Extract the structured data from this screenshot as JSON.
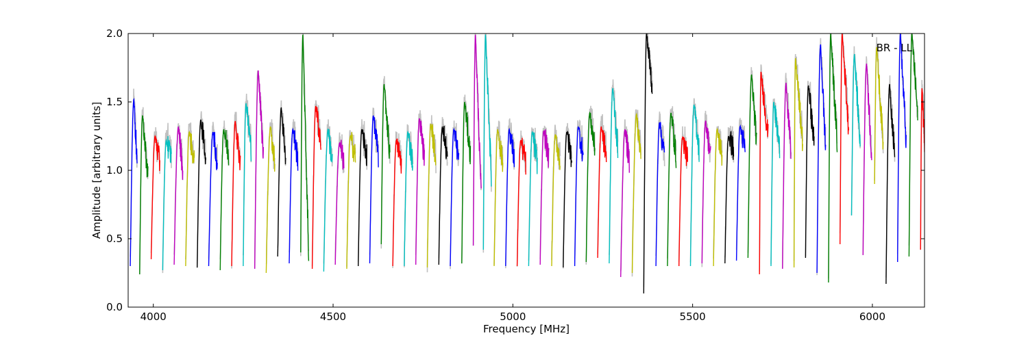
{
  "chart_data": {
    "type": "line",
    "xlabel": "Frequency [MHz]",
    "ylabel": "Amplitude [arbitrary units]",
    "annotation": "BR - LL",
    "xlim": [
      3930,
      6145
    ],
    "ylim": [
      0.0,
      2.0
    ],
    "x_ticks": [
      4000,
      4500,
      5000,
      5500,
      6000
    ],
    "y_ticks": [
      0.0,
      0.5,
      1.0,
      1.5,
      2.0
    ],
    "x_tick_labels": [
      "4000",
      "4500",
      "5000",
      "5500",
      "6000"
    ],
    "y_tick_labels": [
      "0.0",
      "0.5",
      "1.0",
      "1.5",
      "2.0"
    ],
    "grid": false,
    "legend": "none",
    "channel_colors": [
      "#0000ff",
      "#008000",
      "#ff0000",
      "#00bfbf",
      "#bf00bf",
      "#bfbf00",
      "#000000"
    ],
    "raw_color": "#c0c0c0",
    "band_start": 3930,
    "band_width": 32,
    "channels": [
      {
        "color": "#0000ff",
        "peaks": [
          [
            3936,
            0.3
          ],
          [
            3946,
            1.52
          ],
          [
            3955,
            1.05
          ]
        ]
      },
      {
        "color": "#008000",
        "peaks": [
          [
            3962,
            0.24
          ],
          [
            3970,
            1.4
          ],
          [
            3985,
            0.95
          ]
        ]
      },
      {
        "color": "#ff0000",
        "peaks": [
          [
            3994,
            0.35
          ],
          [
            4005,
            1.25
          ],
          [
            4018,
            1.05
          ]
        ]
      },
      {
        "color": "#00bfbf",
        "peaks": [
          [
            4026,
            0.27
          ],
          [
            4036,
            1.22
          ],
          [
            4050,
            1.1
          ]
        ]
      },
      {
        "color": "#bf00bf",
        "peaks": [
          [
            4058,
            0.31
          ],
          [
            4070,
            1.32
          ],
          [
            4082,
            1.0
          ]
        ]
      },
      {
        "color": "#bfbf00",
        "peaks": [
          [
            4090,
            0.3
          ],
          [
            4100,
            1.28
          ],
          [
            4114,
            1.05
          ]
        ]
      },
      {
        "color": "#000000",
        "peaks": [
          [
            4122,
            0.29
          ],
          [
            4132,
            1.37
          ],
          [
            4146,
            1.1
          ]
        ]
      },
      {
        "color": "#0000ff",
        "peaks": [
          [
            4154,
            0.3
          ],
          [
            4166,
            1.28
          ],
          [
            4178,
            1.05
          ]
        ]
      },
      {
        "color": "#008000",
        "peaks": [
          [
            4186,
            0.27
          ],
          [
            4196,
            1.3
          ],
          [
            4210,
            1.1
          ]
        ]
      },
      {
        "color": "#ff0000",
        "peaks": [
          [
            4218,
            0.3
          ],
          [
            4228,
            1.36
          ],
          [
            4242,
            1.05
          ]
        ]
      },
      {
        "color": "#00bfbf",
        "peaks": [
          [
            4250,
            0.3
          ],
          [
            4258,
            1.49
          ],
          [
            4272,
            1.15
          ]
        ]
      },
      {
        "color": "#bf00bf",
        "peaks": [
          [
            4282,
            0.28
          ],
          [
            4292,
            1.73
          ],
          [
            4306,
            1.1
          ]
        ]
      },
      {
        "color": "#bfbf00",
        "peaks": [
          [
            4314,
            0.25
          ],
          [
            4326,
            1.32
          ],
          [
            4338,
            1.05
          ]
        ]
      },
      {
        "color": "#000000",
        "peaks": [
          [
            4346,
            0.37
          ],
          [
            4356,
            1.46
          ],
          [
            4368,
            1.1
          ]
        ]
      },
      {
        "color": "#0000ff",
        "peaks": [
          [
            4378,
            0.32
          ],
          [
            4388,
            1.3
          ],
          [
            4402,
            1.08
          ]
        ]
      },
      {
        "color": "#008000",
        "peaks": [
          [
            4410,
            0.4
          ],
          [
            4416,
            2.0
          ],
          [
            4432,
            0.38
          ]
        ]
      },
      {
        "color": "#ff0000",
        "peaks": [
          [
            4442,
            0.28
          ],
          [
            4452,
            1.47
          ],
          [
            4466,
            1.2
          ]
        ]
      },
      {
        "color": "#00bfbf",
        "peaks": [
          [
            4474,
            0.26
          ],
          [
            4486,
            1.3
          ],
          [
            4498,
            1.05
          ]
        ]
      },
      {
        "color": "#bf00bf",
        "peaks": [
          [
            4506,
            0.31
          ],
          [
            4518,
            1.2
          ],
          [
            4530,
            1.05
          ]
        ]
      },
      {
        "color": "#bfbf00",
        "peaks": [
          [
            4538,
            0.28
          ],
          [
            4548,
            1.25
          ],
          [
            4562,
            1.1
          ]
        ]
      },
      {
        "color": "#000000",
        "peaks": [
          [
            4570,
            0.3
          ],
          [
            4580,
            1.3
          ],
          [
            4594,
            1.1
          ]
        ]
      },
      {
        "color": "#0000ff",
        "peaks": [
          [
            4602,
            0.32
          ],
          [
            4612,
            1.4
          ],
          [
            4626,
            1.1
          ]
        ]
      },
      {
        "color": "#008000",
        "peaks": [
          [
            4634,
            0.46
          ],
          [
            4642,
            1.63
          ],
          [
            4658,
            1.1
          ]
        ]
      },
      {
        "color": "#ff0000",
        "peaks": [
          [
            4666,
            0.3
          ],
          [
            4676,
            1.22
          ],
          [
            4690,
            1.05
          ]
        ]
      },
      {
        "color": "#00bfbf",
        "peaks": [
          [
            4698,
            0.3
          ],
          [
            4708,
            1.28
          ],
          [
            4722,
            1.05
          ]
        ]
      },
      {
        "color": "#bf00bf",
        "peaks": [
          [
            4730,
            0.31
          ],
          [
            4740,
            1.38
          ],
          [
            4754,
            1.1
          ]
        ]
      },
      {
        "color": "#bfbf00",
        "peaks": [
          [
            4762,
            0.29
          ],
          [
            4772,
            1.34
          ],
          [
            4786,
            1.08
          ]
        ]
      },
      {
        "color": "#000000",
        "peaks": [
          [
            4794,
            0.31
          ],
          [
            4804,
            1.32
          ],
          [
            4818,
            1.1
          ]
        ]
      },
      {
        "color": "#0000ff",
        "peaks": [
          [
            4826,
            0.3
          ],
          [
            4836,
            1.3
          ],
          [
            4850,
            1.08
          ]
        ]
      },
      {
        "color": "#008000",
        "peaks": [
          [
            4858,
            0.32
          ],
          [
            4866,
            1.5
          ],
          [
            4882,
            1.1
          ]
        ]
      },
      {
        "color": "#bf00bf",
        "peaks": [
          [
            4890,
            0.45
          ],
          [
            4896,
            2.0
          ],
          [
            4912,
            0.8
          ]
        ]
      },
      {
        "color": "#00bfbf",
        "peaks": [
          [
            4918,
            0.42
          ],
          [
            4924,
            2.0
          ],
          [
            4940,
            0.95
          ]
        ]
      },
      {
        "color": "#bfbf00",
        "peaks": [
          [
            4948,
            0.3
          ],
          [
            4958,
            1.3
          ],
          [
            4972,
            1.05
          ]
        ]
      },
      {
        "color": "#0000ff",
        "peaks": [
          [
            4980,
            0.3
          ],
          [
            4990,
            1.3
          ],
          [
            5004,
            1.08
          ]
        ]
      },
      {
        "color": "#ff0000",
        "peaks": [
          [
            5012,
            0.3
          ],
          [
            5022,
            1.22
          ],
          [
            5036,
            1.05
          ]
        ]
      },
      {
        "color": "#00bfbf",
        "peaks": [
          [
            5044,
            0.3
          ],
          [
            5054,
            1.28
          ],
          [
            5068,
            1.05
          ]
        ]
      },
      {
        "color": "#bf00bf",
        "peaks": [
          [
            5076,
            0.31
          ],
          [
            5086,
            1.29
          ],
          [
            5100,
            1.08
          ]
        ]
      },
      {
        "color": "#bfbf00",
        "peaks": [
          [
            5108,
            0.3
          ],
          [
            5118,
            1.26
          ],
          [
            5132,
            1.05
          ]
        ]
      },
      {
        "color": "#000000",
        "peaks": [
          [
            5140,
            0.29
          ],
          [
            5150,
            1.28
          ],
          [
            5164,
            1.08
          ]
        ]
      },
      {
        "color": "#0000ff",
        "peaks": [
          [
            5172,
            0.3
          ],
          [
            5182,
            1.32
          ],
          [
            5196,
            1.1
          ]
        ]
      },
      {
        "color": "#008000",
        "peaks": [
          [
            5204,
            0.33
          ],
          [
            5214,
            1.42
          ],
          [
            5228,
            1.15
          ]
        ]
      },
      {
        "color": "#ff0000",
        "peaks": [
          [
            5236,
            0.36
          ],
          [
            5246,
            1.32
          ],
          [
            5260,
            1.1
          ]
        ]
      },
      {
        "color": "#00bfbf",
        "peaks": [
          [
            5268,
            0.32
          ],
          [
            5278,
            1.6
          ],
          [
            5292,
            1.15
          ]
        ]
      },
      {
        "color": "#bf00bf",
        "peaks": [
          [
            5300,
            0.22
          ],
          [
            5312,
            1.3
          ],
          [
            5324,
            1.05
          ]
        ]
      },
      {
        "color": "#bfbf00",
        "peaks": [
          [
            5332,
            0.25
          ],
          [
            5344,
            1.41
          ],
          [
            5356,
            1.1
          ]
        ]
      },
      {
        "color": "#000000",
        "peaks": [
          [
            5364,
            0.1
          ],
          [
            5372,
            2.0
          ],
          [
            5388,
            1.6
          ]
        ]
      },
      {
        "color": "#0000ff",
        "peaks": [
          [
            5398,
            0.3
          ],
          [
            5408,
            1.35
          ],
          [
            5422,
            1.1
          ]
        ]
      },
      {
        "color": "#008000",
        "peaks": [
          [
            5430,
            0.3
          ],
          [
            5440,
            1.42
          ],
          [
            5454,
            1.1
          ]
        ]
      },
      {
        "color": "#ff0000",
        "peaks": [
          [
            5462,
            0.3
          ],
          [
            5472,
            1.24
          ],
          [
            5486,
            1.08
          ]
        ]
      },
      {
        "color": "#00bfbf",
        "peaks": [
          [
            5494,
            0.3
          ],
          [
            5504,
            1.48
          ],
          [
            5518,
            1.15
          ]
        ]
      },
      {
        "color": "#bf00bf",
        "peaks": [
          [
            5526,
            0.32
          ],
          [
            5536,
            1.36
          ],
          [
            5550,
            1.1
          ]
        ]
      },
      {
        "color": "#bfbf00",
        "peaks": [
          [
            5558,
            0.3
          ],
          [
            5568,
            1.3
          ],
          [
            5582,
            1.1
          ]
        ]
      },
      {
        "color": "#000000",
        "peaks": [
          [
            5590,
            0.32
          ],
          [
            5600,
            1.25
          ],
          [
            5614,
            1.15
          ]
        ]
      },
      {
        "color": "#0000ff",
        "peaks": [
          [
            5622,
            0.34
          ],
          [
            5632,
            1.32
          ],
          [
            5646,
            1.15
          ]
        ]
      },
      {
        "color": "#008000",
        "peaks": [
          [
            5654,
            0.36
          ],
          [
            5664,
            1.7
          ],
          [
            5678,
            1.2
          ]
        ]
      },
      {
        "color": "#ff0000",
        "peaks": [
          [
            5686,
            0.24
          ],
          [
            5690,
            1.72
          ],
          [
            5710,
            1.25
          ]
        ]
      },
      {
        "color": "#00bfbf",
        "peaks": [
          [
            5718,
            0.3
          ],
          [
            5726,
            1.5
          ],
          [
            5742,
            1.15
          ]
        ]
      },
      {
        "color": "#bf00bf",
        "peaks": [
          [
            5750,
            0.28
          ],
          [
            5760,
            1.64
          ],
          [
            5774,
            1.1
          ]
        ]
      },
      {
        "color": "#bfbf00",
        "peaks": [
          [
            5782,
            0.29
          ],
          [
            5786,
            1.82
          ],
          [
            5806,
            1.2
          ]
        ]
      },
      {
        "color": "#000000",
        "peaks": [
          [
            5814,
            0.36
          ],
          [
            5822,
            1.62
          ],
          [
            5838,
            1.2
          ]
        ]
      },
      {
        "color": "#0000ff",
        "peaks": [
          [
            5846,
            0.25
          ],
          [
            5856,
            1.92
          ],
          [
            5870,
            1.15
          ]
        ]
      },
      {
        "color": "#008000",
        "peaks": [
          [
            5878,
            0.18
          ],
          [
            5884,
            2.0
          ],
          [
            5902,
            1.2
          ]
        ]
      },
      {
        "color": "#ff0000",
        "peaks": [
          [
            5910,
            0.46
          ],
          [
            5916,
            2.0
          ],
          [
            5934,
            1.3
          ]
        ]
      },
      {
        "color": "#00bfbf",
        "peaks": [
          [
            5942,
            0.67
          ],
          [
            5950,
            1.85
          ],
          [
            5966,
            1.2
          ]
        ]
      },
      {
        "color": "#bf00bf",
        "peaks": [
          [
            5974,
            0.38
          ],
          [
            5984,
            1.78
          ],
          [
            5998,
            1.1
          ]
        ]
      },
      {
        "color": "#bfbf00",
        "peaks": [
          [
            6006,
            0.9
          ],
          [
            6012,
            1.9
          ],
          [
            6030,
            1.2
          ]
        ]
      },
      {
        "color": "#000000",
        "peaks": [
          [
            6038,
            0.17
          ],
          [
            6048,
            1.63
          ],
          [
            6062,
            1.1
          ]
        ]
      },
      {
        "color": "#0000ff",
        "peaks": [
          [
            6070,
            0.33
          ],
          [
            6078,
            2.0
          ],
          [
            6094,
            1.2
          ]
        ]
      },
      {
        "color": "#008000",
        "peaks": [
          [
            6102,
            0.37
          ],
          [
            6110,
            2.0
          ],
          [
            6126,
            1.4
          ]
        ]
      },
      {
        "color": "#ff0000",
        "peaks": [
          [
            6134,
            0.42
          ],
          [
            6138,
            1.6
          ],
          [
            6145,
            1.22
          ]
        ]
      }
    ]
  }
}
